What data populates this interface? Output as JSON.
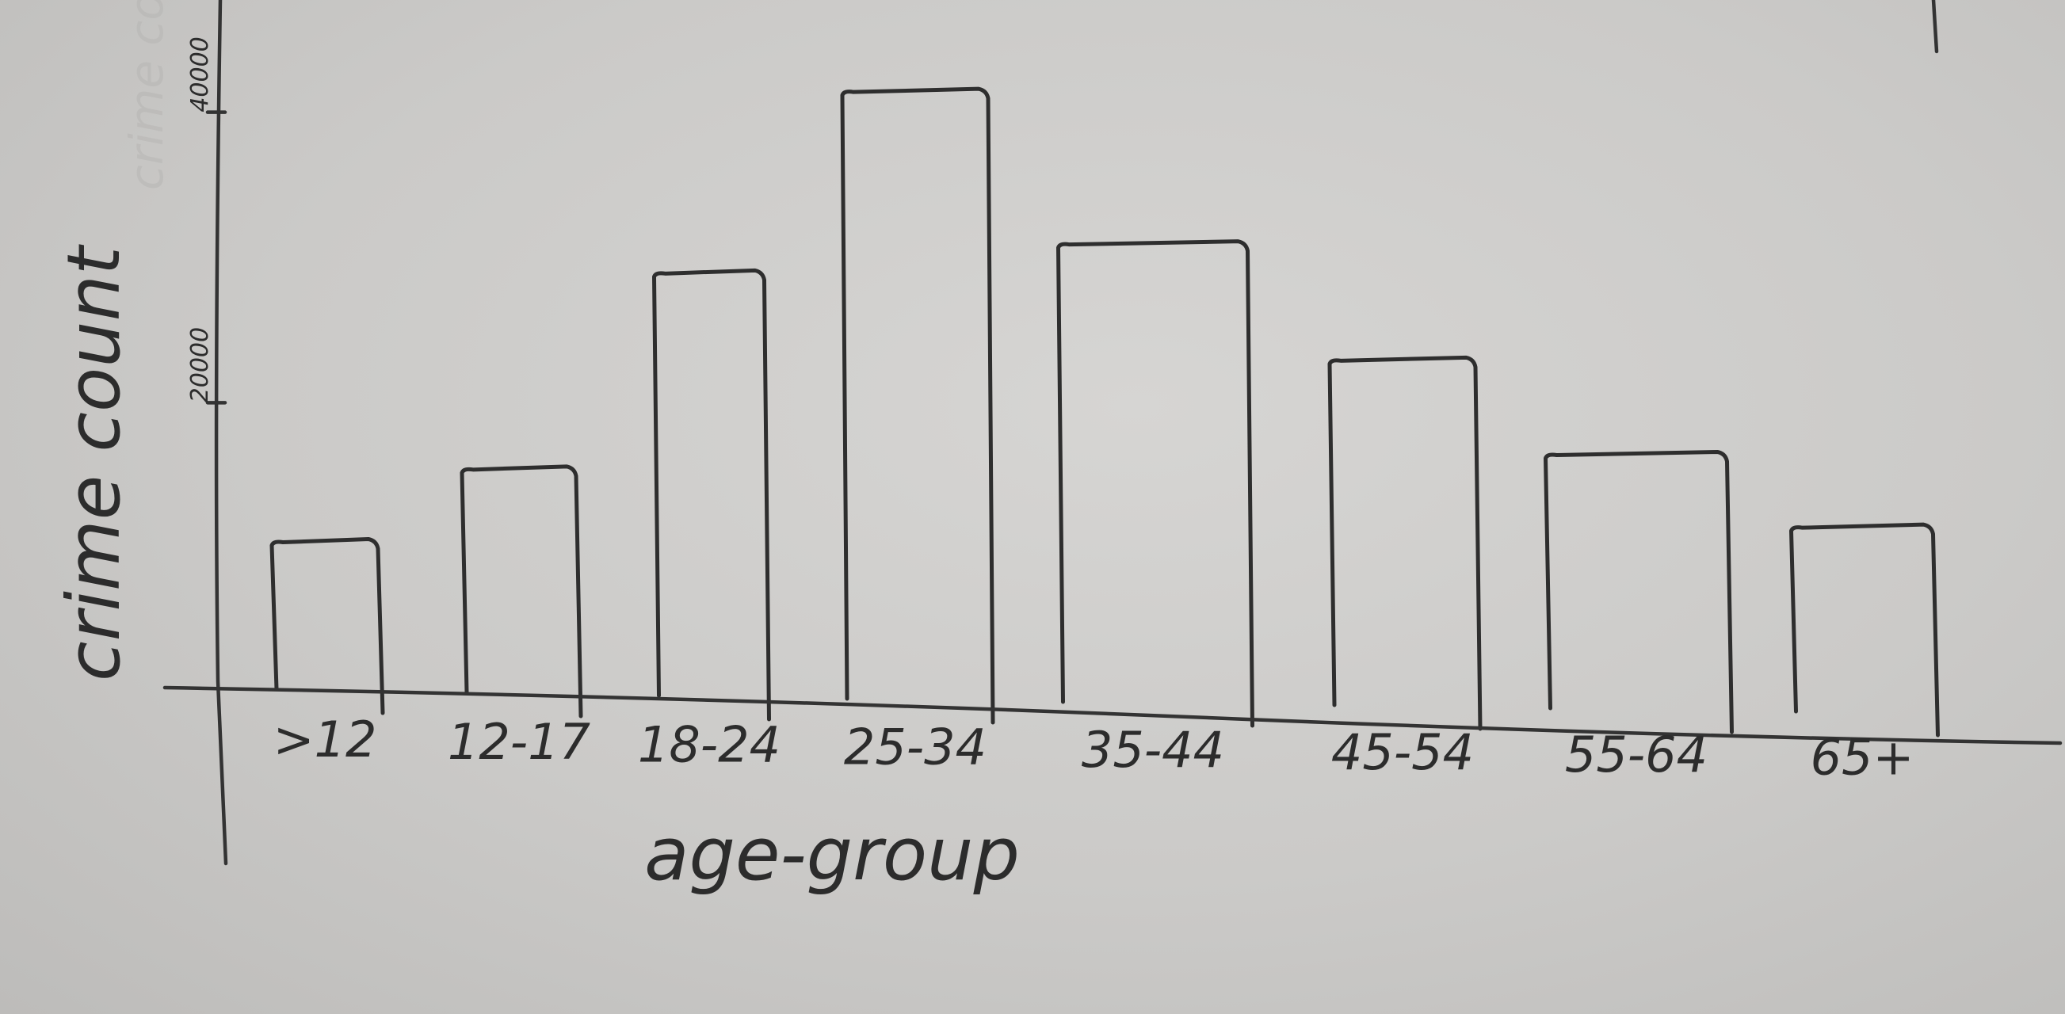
{
  "chart_data": {
    "type": "bar",
    "title": "",
    "xlabel": "age-group",
    "ylabel": "crime count",
    "categories": [
      ">12",
      "12-17",
      "18-24",
      "25-34",
      "35-44",
      "45-54",
      "55-64",
      "65+"
    ],
    "values": [
      10500,
      15500,
      29000,
      41500,
      31000,
      23000,
      16500,
      11500
    ],
    "yticks": [
      20000,
      40000
    ],
    "ytick_labels": [
      "20000",
      "40000"
    ],
    "ylim": [
      0,
      45000
    ],
    "grid": false,
    "legend": "none",
    "ink_color": "#2e2e2e"
  }
}
